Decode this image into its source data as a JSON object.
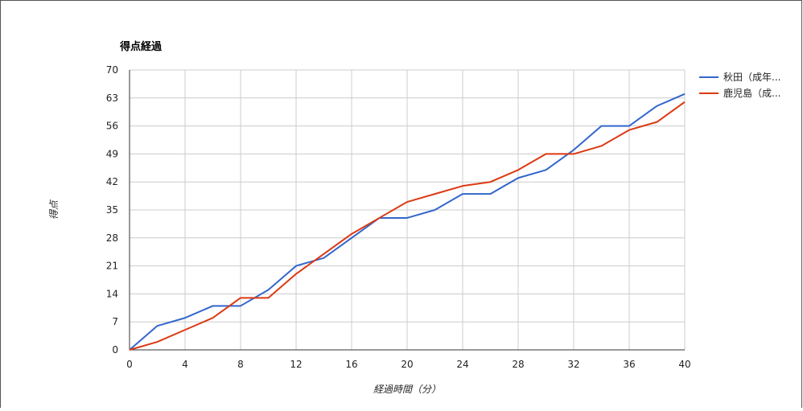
{
  "chart_data": {
    "type": "line",
    "title": "得点経過",
    "xlabel": "経過時間（分）",
    "ylabel": "得点",
    "xlim": [
      0,
      40
    ],
    "ylim": [
      0,
      70
    ],
    "x_ticks": [
      0,
      4,
      8,
      12,
      16,
      20,
      24,
      28,
      32,
      36,
      40
    ],
    "y_ticks": [
      0,
      7,
      14,
      21,
      28,
      35,
      42,
      49,
      56,
      63,
      70
    ],
    "grid": true,
    "legend_position": "right",
    "x": [
      0,
      2,
      4,
      6,
      8,
      10,
      12,
      14,
      16,
      18,
      20,
      22,
      24,
      26,
      28,
      30,
      32,
      34,
      36,
      38,
      40
    ],
    "series": [
      {
        "name": "秋田（成年...",
        "color": "#3366cc",
        "values": [
          0,
          6,
          8,
          11,
          11,
          15,
          21,
          23,
          28,
          33,
          33,
          35,
          39,
          39,
          43,
          45,
          50,
          56,
          56,
          61,
          64
        ]
      },
      {
        "name": "鹿児島（成...",
        "color": "#dc3912",
        "values": [
          0,
          2,
          5,
          8,
          13,
          13,
          19,
          24,
          29,
          33,
          37,
          39,
          41,
          42,
          45,
          49,
          49,
          51,
          55,
          57,
          62
        ]
      }
    ]
  }
}
